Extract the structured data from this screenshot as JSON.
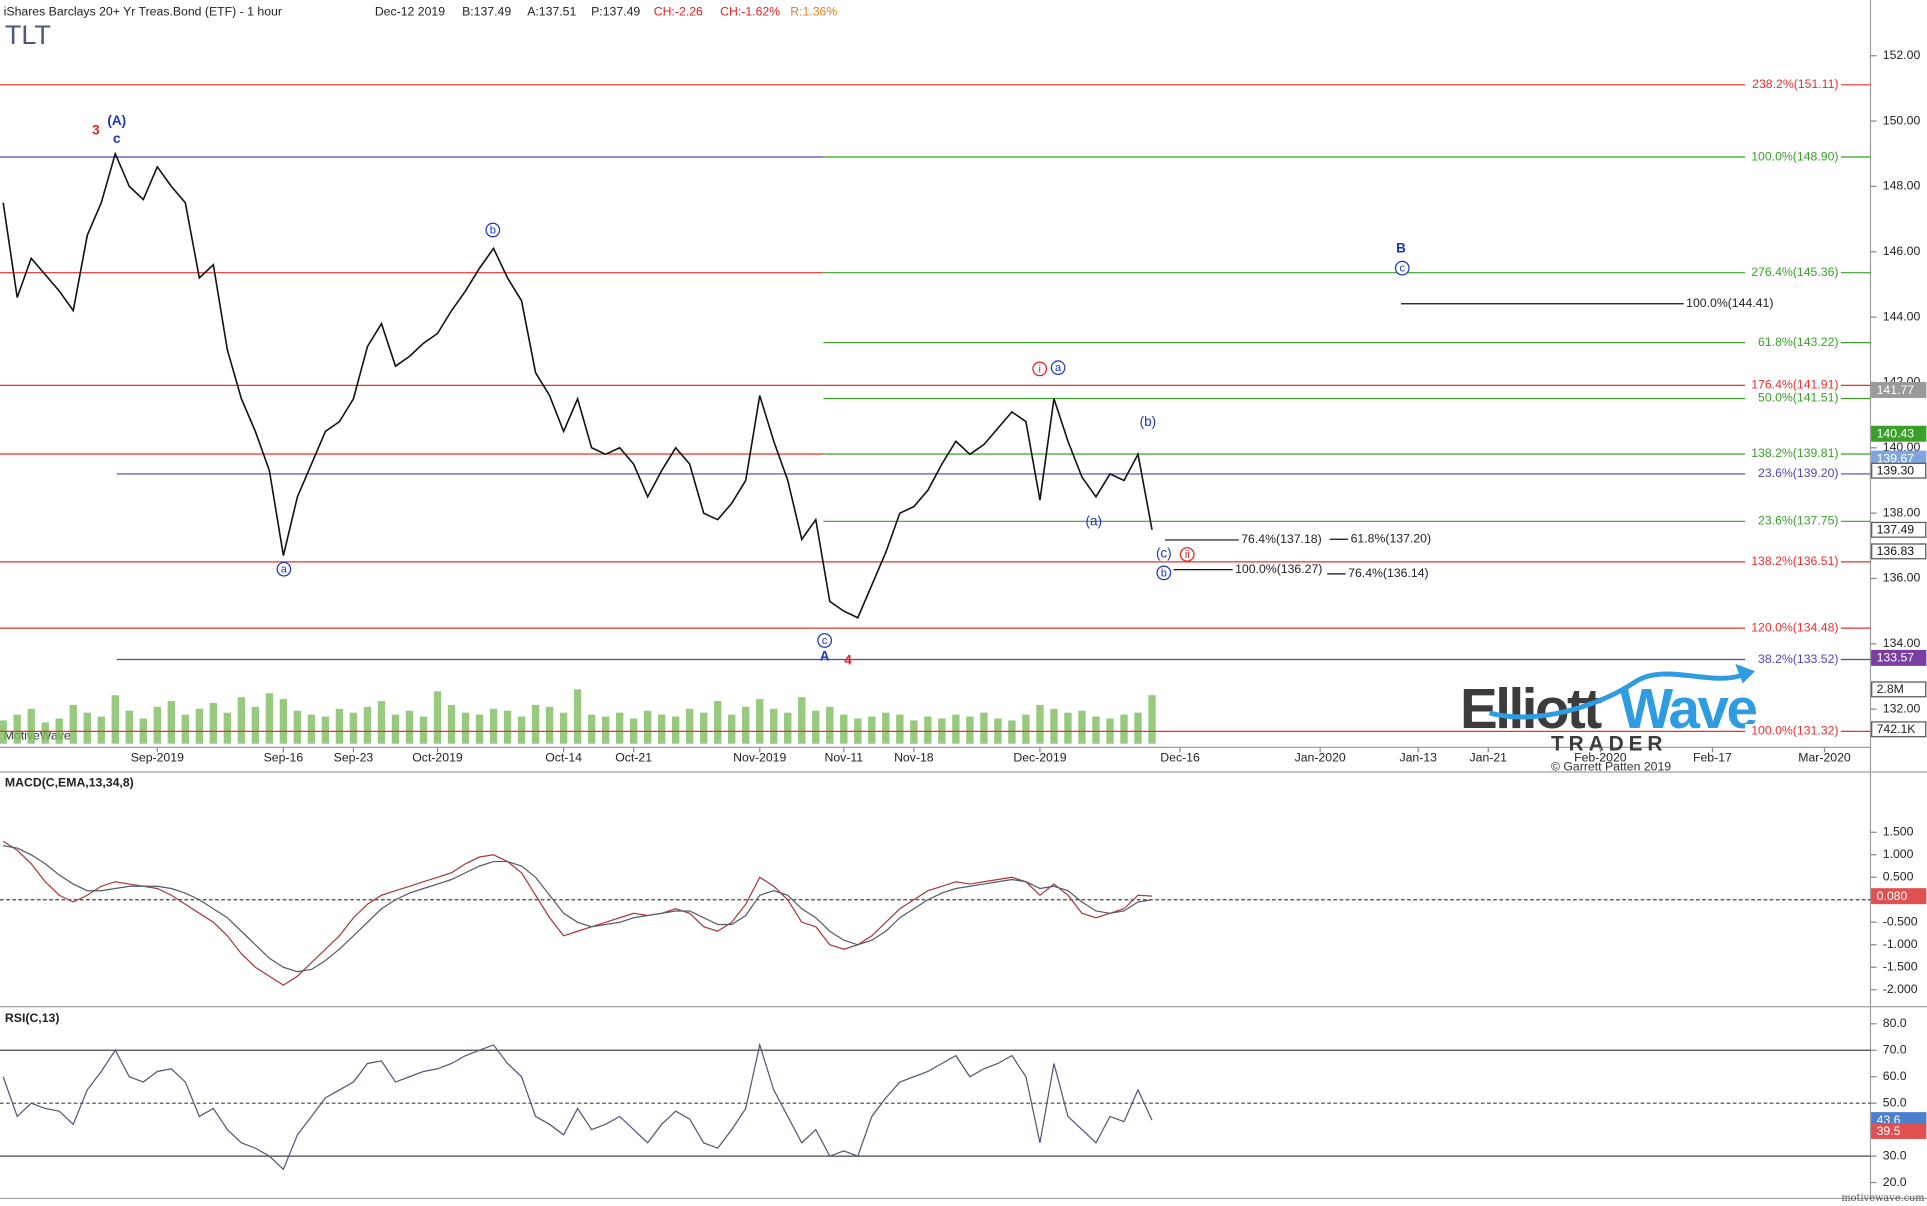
{
  "header": {
    "title": "iShares Barclays 20+ Yr Treas.Bond (ETF) - 1 hour",
    "date": "Dec-12 2019",
    "bid": "B:137.49",
    "ask": "A:137.51",
    "price": "P:137.49",
    "change": "CH:-2.26",
    "change_pct": "CH:-1.62%",
    "range": "R:1.36%",
    "symbol": "TLT"
  },
  "footer": {
    "platform": "MotiveWave",
    "site": "motivewave.com"
  },
  "logo": {
    "name_a": "Elliott",
    "name_b": "Wave",
    "sub": "TRADER",
    "copyright": "© Garrett Patten 2019"
  },
  "chart_data": [
    {
      "type": "line",
      "categories": [
        null,
        null,
        null,
        null,
        null,
        null,
        null,
        null,
        null,
        null,
        null,
        "Sep-2019",
        null,
        null,
        null,
        null,
        null,
        null,
        null,
        null,
        "Sep-16",
        null,
        null,
        null,
        null,
        "Sep-23",
        null,
        null,
        null,
        null,
        null,
        "Oct-2019",
        null,
        null,
        null,
        null,
        null,
        null,
        null,
        null,
        "Oct-14",
        null,
        null,
        null,
        null,
        "Oct-21",
        null,
        null,
        null,
        null,
        null,
        null,
        null,
        null,
        "Nov-2019",
        null,
        null,
        null,
        null,
        null,
        "Nov-11",
        null,
        null,
        null,
        null,
        "Nov-18",
        null,
        null,
        null,
        null,
        null,
        null,
        null,
        null,
        "Dec-2019",
        null,
        null,
        null,
        null,
        null,
        null,
        null,
        null,
        null,
        "Dec-16",
        null,
        null,
        null,
        null,
        null,
        null,
        null,
        null,
        null,
        "Jan-2020",
        null,
        null,
        null,
        null,
        null,
        null,
        "Jan-13",
        null,
        null,
        null,
        null,
        "Jan-21",
        null,
        null,
        null,
        null,
        null,
        null,
        null,
        "Feb-2020",
        null,
        null,
        null,
        null,
        null,
        null,
        null,
        "Feb-17",
        null,
        null,
        null,
        null,
        null,
        null,
        null,
        "Mar-2020",
        null,
        null,
        null
      ],
      "values": [
        147.5,
        144.6,
        145.8,
        145.3,
        144.8,
        144.2,
        146.5,
        147.5,
        149,
        148,
        147.6,
        148.6,
        148,
        147.5,
        145.2,
        145.6,
        143,
        141.5,
        140.5,
        139.3,
        136.7,
        138.5,
        139.5,
        140.5,
        140.8,
        141.5,
        143.1,
        143.8,
        142.5,
        142.8,
        143.2,
        143.5,
        144.2,
        144.8,
        145.5,
        146.1,
        145.2,
        144.5,
        142.3,
        141.6,
        140.5,
        141.5,
        140,
        139.8,
        140,
        139.5,
        138.5,
        139.3,
        140,
        139.5,
        138,
        137.8,
        138.3,
        139,
        141.6,
        140.2,
        139,
        137.2,
        137.8,
        135.3,
        135,
        134.8,
        135.8,
        136.8,
        138,
        138.2,
        138.7,
        139.5,
        140.2,
        139.8,
        140.1,
        140.6,
        141.1,
        140.8,
        138.4,
        141.5,
        140.2,
        139.1,
        138.5,
        139.2,
        139,
        139.8,
        137.49,
        null,
        null,
        null,
        null,
        null,
        null,
        null,
        null,
        null,
        null,
        null,
        null,
        null,
        null,
        null,
        null,
        null,
        null,
        null,
        null,
        null,
        null,
        null,
        null,
        null,
        null,
        null,
        null,
        null,
        null,
        null,
        null,
        null,
        null,
        null,
        null,
        null,
        null,
        null,
        null,
        null,
        null,
        null,
        null,
        null,
        null,
        null,
        null,
        null,
        null,
        null
      ],
      "color": "#111111",
      "volume": [
        1.2,
        1.5,
        1.8,
        1.1,
        1.3,
        2.0,
        1.6,
        1.4,
        2.5,
        1.7,
        1.3,
        1.9,
        2.2,
        1.5,
        1.8,
        2.1,
        1.6,
        2.4,
        1.9,
        2.6,
        2.3,
        1.7,
        1.5,
        1.4,
        1.8,
        1.6,
        1.9,
        2.2,
        1.5,
        1.7,
        1.4,
        2.7,
        2.0,
        1.6,
        1.5,
        1.8,
        1.7,
        1.4,
        2.0,
        1.9,
        1.6,
        2.8,
        1.5,
        1.4,
        1.6,
        1.3,
        1.7,
        1.5,
        1.4,
        1.8,
        1.6,
        2.2,
        1.5,
        1.9,
        2.3,
        1.8,
        1.6,
        2.4,
        1.7,
        1.9,
        1.5,
        1.3,
        1.4,
        1.6,
        1.5,
        1.2,
        1.4,
        1.3,
        1.5,
        1.4,
        1.6,
        1.3,
        1.2,
        1.5,
        2.0,
        1.8,
        1.6,
        1.7,
        1.4,
        1.3,
        1.5,
        1.6,
        2.5,
        null,
        null,
        null,
        null,
        null,
        null,
        null,
        null,
        null,
        null,
        null,
        null,
        null,
        null,
        null,
        null,
        null,
        null,
        null,
        null,
        null,
        null,
        null,
        null,
        null,
        null,
        null,
        null,
        null,
        null,
        null,
        null,
        null,
        null,
        null,
        null,
        null,
        null,
        null,
        null,
        null,
        null,
        null,
        null,
        null,
        null,
        null,
        null,
        null,
        null,
        null
      ],
      "volume_color": "#7dbb5e",
      "vlim": [
        0,
        3.8
      ],
      "vtags": [
        {
          "value": 2.8,
          "label": "2.8M"
        },
        {
          "value": 0.7421,
          "label": "742.1K"
        }
      ],
      "ylim": [
        130.83,
        153.7
      ],
      "yticks": [
        {
          "value": 132,
          "label": "132.00"
        },
        {
          "value": 134,
          "label": "134.00"
        },
        {
          "value": 136,
          "label": "136.00"
        },
        {
          "value": 138,
          "label": "138.00"
        },
        {
          "value": 140,
          "label": "140.00"
        },
        {
          "value": 142,
          "label": "142.00"
        },
        {
          "value": 144,
          "label": "144.00"
        },
        {
          "value": 146,
          "label": "146.00"
        },
        {
          "value": 148,
          "label": "148.00"
        },
        {
          "value": 150,
          "label": "150.00"
        },
        {
          "value": 152,
          "label": "152.00"
        }
      ],
      "price_tags": [
        {
          "value": 141.77,
          "label": "141.77",
          "color": "#9a9a9a"
        },
        {
          "value": 140.43,
          "label": "140.43",
          "color": "#3aa02a"
        },
        {
          "value": 139.67,
          "label": "139.67",
          "color": "#7fa6dc"
        },
        {
          "value": 139.3,
          "label": "139.30",
          "color": "#ffffff"
        },
        {
          "value": 137.49,
          "label": "137.49",
          "color": "#ffffff"
        },
        {
          "value": 136.83,
          "label": "136.83",
          "color": "#ffffff"
        },
        {
          "value": 133.57,
          "label": "133.57",
          "color": "#7a3fa0"
        }
      ],
      "levels": [
        {
          "label": "238.2%(151.11)",
          "value": 151.11,
          "colors": [
            "#e8302f"
          ]
        },
        {
          "label": "100.0%(148.90)",
          "value": 148.9,
          "colors": [
            "#5b3fb0",
            "#3aa02a"
          ]
        },
        {
          "label": "276.4%(145.36)",
          "value": 145.36,
          "colors": [
            "#e8302f",
            "#3aa02a"
          ]
        },
        {
          "label": "61.8%(143.22)",
          "value": 143.22,
          "colors": [
            "#3aa02a"
          ]
        },
        {
          "label": "176.4%(141.91)",
          "value": 141.91,
          "colors": [
            "#e8302f"
          ]
        },
        {
          "label": "50.0%(141.51)",
          "value": 141.51,
          "colors": [
            "#3aa02a"
          ]
        },
        {
          "label": "138.2%(139.81)",
          "value": 139.81,
          "colors": [
            "#e8302f",
            "#3aa02a"
          ]
        },
        {
          "label": "23.6%(139.20)",
          "value": 139.2,
          "colors": [
            "#5b3fb0"
          ]
        },
        {
          "label": "23.6%(137.75)",
          "value": 137.75,
          "colors": [
            "#3aa02a"
          ]
        },
        {
          "label": "138.2%(136.51)",
          "value": 136.51,
          "colors": [
            "#e8302f"
          ]
        },
        {
          "label": "120.0%(134.48)",
          "value": 134.48,
          "colors": [
            "#e8302f"
          ]
        },
        {
          "label": "38.2%(133.52)",
          "value": 133.52,
          "colors": [
            "#5b3fb0"
          ]
        },
        {
          "label": "100.0%(131.32)",
          "value": 131.32,
          "colors": [
            "#e8302f"
          ]
        }
      ],
      "projections": [
        {
          "label": "100.0%(144.41)",
          "value": 144.41
        },
        {
          "label": "76.4%(137.18)",
          "value": 137.18
        },
        {
          "label": "61.8%(137.20)",
          "value": 137.2
        },
        {
          "label": "100.0%(136.27)",
          "value": 136.27
        },
        {
          "label": "76.4%(136.14)",
          "value": 136.14
        }
      ],
      "annotations": [
        {
          "text": "3",
          "color": "#e02020",
          "circled": false,
          "bold": true
        },
        {
          "text": "(A)",
          "color": "#1a35c0",
          "circled": false,
          "bold": true
        },
        {
          "text": "c",
          "color": "#1a35c0",
          "circled": false,
          "bold": true
        },
        {
          "text": "a",
          "color": "#1a35c0",
          "circled": true,
          "bold": false
        },
        {
          "text": "b",
          "color": "#1a35c0",
          "circled": true,
          "bold": false
        },
        {
          "text": "c",
          "color": "#1a35c0",
          "circled": true,
          "bold": false
        },
        {
          "text": "A",
          "color": "#1a35c0",
          "circled": false,
          "bold": true
        },
        {
          "text": "4",
          "color": "#e02020",
          "circled": false,
          "bold": true
        },
        {
          "text": "i",
          "color": "#e02020",
          "circled": true,
          "bold": false
        },
        {
          "text": "a",
          "color": "#1a35c0",
          "circled": true,
          "bold": false
        },
        {
          "text": "(b)",
          "color": "#1a35c0",
          "circled": false,
          "bold": false
        },
        {
          "text": "(a)",
          "color": "#1a35c0",
          "circled": false,
          "bold": false
        },
        {
          "text": "(c)",
          "color": "#1a35c0",
          "circled": false,
          "bold": false
        },
        {
          "text": "ii",
          "color": "#e02020",
          "circled": true,
          "bold": false
        },
        {
          "text": "b",
          "color": "#1a35c0",
          "circled": true,
          "bold": false
        },
        {
          "text": "B",
          "color": "#1a35c0",
          "circled": false,
          "bold": true
        },
        {
          "text": "c",
          "color": "#1a35c0",
          "circled": true,
          "bold": false
        }
      ]
    },
    {
      "type": "line",
      "title": "MACD(C,EMA,13,34,8)",
      "series": [
        {
          "color": "#a83a3a",
          "values": [
            1.3,
            1.1,
            0.8,
            0.4,
            0.1,
            -0.05,
            0.1,
            0.3,
            0.4,
            0.35,
            0.3,
            0.25,
            0.1,
            -0.1,
            -0.3,
            -0.5,
            -0.8,
            -1.2,
            -1.5,
            -1.7,
            -1.9,
            -1.7,
            -1.4,
            -1.1,
            -0.8,
            -0.4,
            -0.1,
            0.1,
            0.2,
            0.3,
            0.4,
            0.5,
            0.6,
            0.8,
            0.95,
            1.0,
            0.85,
            0.6,
            0.1,
            -0.4,
            -0.8,
            -0.7,
            -0.6,
            -0.5,
            -0.4,
            -0.3,
            -0.35,
            -0.3,
            -0.2,
            -0.3,
            -0.6,
            -0.7,
            -0.5,
            -0.1,
            0.5,
            0.3,
            0,
            -0.5,
            -0.6,
            -1.0,
            -1.1,
            -1.0,
            -0.8,
            -0.5,
            -0.2,
            0,
            0.2,
            0.3,
            0.4,
            0.35,
            0.4,
            0.45,
            0.5,
            0.4,
            0.1,
            0.35,
            0.1,
            -0.3,
            -0.4,
            -0.3,
            -0.2,
            0.1,
            0.08
          ]
        },
        {
          "color": "#555a6a",
          "values": [
            1.2,
            1.15,
            1.0,
            0.8,
            0.55,
            0.35,
            0.2,
            0.2,
            0.25,
            0.3,
            0.3,
            0.3,
            0.25,
            0.15,
            0,
            -0.2,
            -0.4,
            -0.7,
            -1.0,
            -1.3,
            -1.5,
            -1.6,
            -1.55,
            -1.35,
            -1.1,
            -0.8,
            -0.5,
            -0.2,
            0,
            0.15,
            0.25,
            0.35,
            0.45,
            0.6,
            0.75,
            0.85,
            0.85,
            0.75,
            0.5,
            0.1,
            -0.3,
            -0.5,
            -0.6,
            -0.55,
            -0.5,
            -0.4,
            -0.35,
            -0.3,
            -0.25,
            -0.25,
            -0.4,
            -0.55,
            -0.55,
            -0.35,
            0.1,
            0.2,
            0.1,
            -0.2,
            -0.4,
            -0.7,
            -0.9,
            -1.0,
            -0.9,
            -0.7,
            -0.4,
            -0.2,
            0,
            0.15,
            0.25,
            0.3,
            0.35,
            0.4,
            0.45,
            0.4,
            0.25,
            0.3,
            0.2,
            -0.05,
            -0.25,
            -0.3,
            -0.25,
            -0.05,
            0
          ]
        }
      ],
      "ylim": [
        -2.35,
        2.84
      ],
      "yticks": [
        {
          "value": -2,
          "label": "-2.000"
        },
        {
          "value": -1.5,
          "label": "-1.500"
        },
        {
          "value": -1,
          "label": "-1.000"
        },
        {
          "value": -0.5,
          "label": "-0.500"
        },
        {
          "value": 0.5,
          "label": "0.500"
        },
        {
          "value": 1,
          "label": "1.000"
        },
        {
          "value": 1.5,
          "label": "1.500"
        }
      ],
      "guides": [
        0
      ],
      "tags": [
        {
          "value": 0.08,
          "label": "0.080",
          "color": "#e05050"
        }
      ]
    },
    {
      "type": "line",
      "title": "RSI(C,13)",
      "series": [
        {
          "color": "#505878",
          "values": [
            60,
            45,
            50,
            48,
            47,
            42,
            55,
            62,
            70,
            60,
            58,
            62,
            63,
            58,
            45,
            48,
            40,
            35,
            33,
            30,
            25,
            38,
            45,
            52,
            55,
            58,
            65,
            66,
            58,
            60,
            62,
            63,
            65,
            68,
            70,
            72,
            65,
            60,
            45,
            42,
            38,
            48,
            40,
            42,
            45,
            40,
            35,
            42,
            47,
            44,
            35,
            33,
            40,
            48,
            72,
            55,
            45,
            35,
            40,
            30,
            32,
            30,
            45,
            52,
            58,
            60,
            62,
            65,
            68,
            60,
            63,
            65,
            68,
            60,
            35,
            65,
            45,
            40,
            35,
            45,
            43,
            55,
            43.6
          ]
        }
      ],
      "ylim": [
        14,
        86
      ],
      "yticks": [
        {
          "value": 20,
          "label": "20.0"
        },
        {
          "value": 30,
          "label": "30.0"
        },
        {
          "value": 40,
          "label": "40.0"
        },
        {
          "value": 50,
          "label": "50.0"
        },
        {
          "value": 60,
          "label": "60.0"
        },
        {
          "value": 70,
          "label": "70.0"
        },
        {
          "value": 80,
          "label": "80.0"
        }
      ],
      "guides": [
        70,
        50,
        30
      ],
      "tags": [
        {
          "value": 43.6,
          "label": "43.6",
          "color": "#4a7fd0"
        },
        {
          "value": 39.5,
          "label": "39.5",
          "color": "#e05050"
        }
      ]
    }
  ]
}
